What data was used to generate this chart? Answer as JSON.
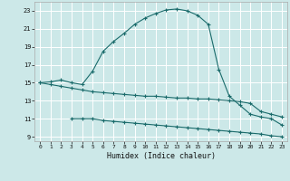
{
  "xlabel": "Humidex (Indice chaleur)",
  "background_color": "#cce8e8",
  "grid_color": "#ffffff",
  "line_color": "#1a6b6b",
  "xlim": [
    -0.5,
    23.5
  ],
  "ylim": [
    8.5,
    24.0
  ],
  "xticks": [
    0,
    1,
    2,
    3,
    4,
    5,
    6,
    7,
    8,
    9,
    10,
    11,
    12,
    13,
    14,
    15,
    16,
    17,
    18,
    19,
    20,
    21,
    22,
    23
  ],
  "yticks": [
    9,
    11,
    13,
    15,
    17,
    19,
    21,
    23
  ],
  "curve1_x": [
    0,
    1,
    2,
    3,
    4,
    5,
    6,
    7,
    8,
    9,
    10,
    11,
    12,
    13,
    14,
    15,
    16,
    17,
    18,
    19,
    20,
    21,
    22,
    23
  ],
  "curve1_y": [
    15.0,
    15.1,
    15.3,
    15.0,
    14.8,
    16.3,
    18.5,
    19.6,
    20.5,
    21.5,
    22.2,
    22.7,
    23.1,
    23.2,
    23.0,
    22.5,
    21.5,
    16.5,
    13.5,
    12.5,
    11.5,
    11.2,
    11.0,
    10.3
  ],
  "curve2_x": [
    0,
    1,
    2,
    3,
    4,
    5,
    6,
    7,
    8,
    9,
    10,
    11,
    12,
    13,
    14,
    15,
    16,
    17,
    18,
    19,
    20,
    21,
    22,
    23
  ],
  "curve2_y": [
    15.0,
    14.8,
    14.6,
    14.4,
    14.2,
    14.0,
    13.9,
    13.8,
    13.7,
    13.6,
    13.5,
    13.5,
    13.4,
    13.3,
    13.3,
    13.2,
    13.2,
    13.1,
    13.0,
    12.9,
    12.7,
    11.8,
    11.5,
    11.2
  ],
  "curve3_x": [
    3,
    4,
    5,
    6,
    7,
    8,
    9,
    10,
    11,
    12,
    13,
    14,
    15,
    16,
    17,
    18,
    19,
    20,
    21,
    22,
    23
  ],
  "curve3_y": [
    11.0,
    11.0,
    11.0,
    10.8,
    10.7,
    10.6,
    10.5,
    10.4,
    10.3,
    10.2,
    10.1,
    10.0,
    9.9,
    9.8,
    9.7,
    9.6,
    9.5,
    9.4,
    9.3,
    9.1,
    9.0
  ],
  "xlabel_fontsize": 6,
  "tick_fontsize": 5
}
